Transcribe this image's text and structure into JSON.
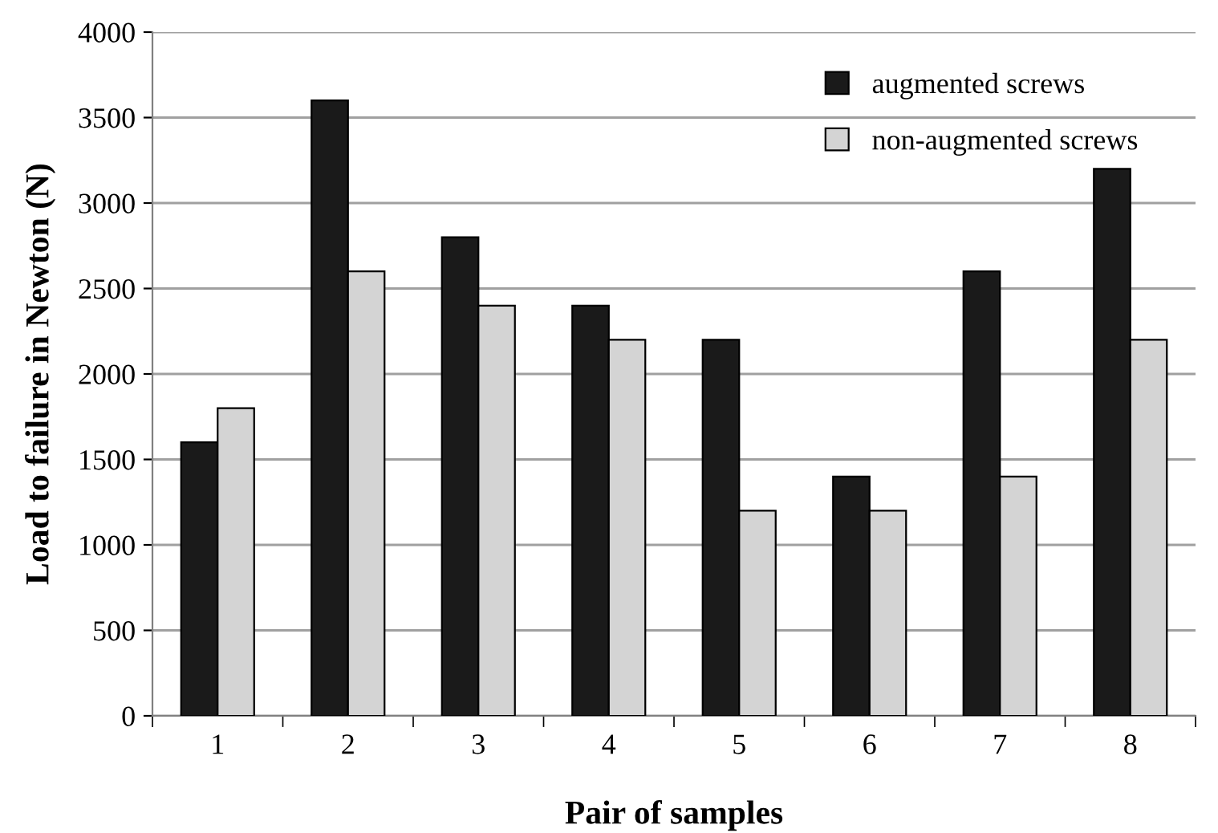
{
  "chart_data": {
    "type": "bar",
    "xlabel": "Pair of samples",
    "ylabel": "Load to failure in Newton (N)",
    "categories": [
      "1",
      "2",
      "3",
      "4",
      "5",
      "6",
      "7",
      "8"
    ],
    "series": [
      {
        "name": "augmented screws",
        "color": "#1a1a1a",
        "values": [
          1600,
          3600,
          2800,
          2400,
          2200,
          1400,
          2600,
          3200
        ]
      },
      {
        "name": "non-augmented screws",
        "color": "#d4d4d4",
        "values": [
          1800,
          2600,
          2400,
          2200,
          1200,
          1200,
          1400,
          2200
        ]
      }
    ],
    "ylim": [
      0,
      4000
    ],
    "yticks": [
      0,
      500,
      1000,
      1500,
      2000,
      2500,
      3000,
      3500,
      4000
    ],
    "grid": "y",
    "legend": "top right"
  }
}
